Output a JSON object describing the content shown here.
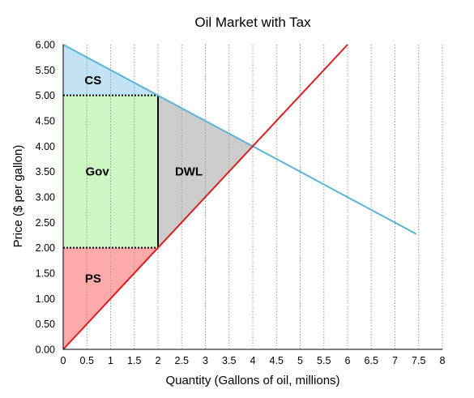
{
  "chart_data": {
    "type": "line",
    "title": "Oil Market with Tax",
    "xlabel": "Quantity (Gallons of oil, millions)",
    "ylabel": "Price ($ per gallon)",
    "xlim": [
      0,
      8
    ],
    "ylim": [
      0,
      6
    ],
    "x_ticks": [
      "0",
      "0.5",
      "1",
      "1.5",
      "2",
      "2.5",
      "3",
      "3.5",
      "4",
      "4.5",
      "5",
      "5.5",
      "6",
      "6.5",
      "7",
      "7.5",
      "8"
    ],
    "y_ticks": [
      "0.00",
      "0.50",
      "1.00",
      "1.50",
      "2.00",
      "2.50",
      "3.00",
      "3.50",
      "4.00",
      "4.50",
      "5.00",
      "5.50",
      "6.00"
    ],
    "grid": {
      "x": "dotted",
      "y": "none"
    },
    "series": [
      {
        "role": "demand",
        "color": "#5ab4d8",
        "points": [
          [
            0,
            6
          ],
          [
            7.45,
            2.27
          ]
        ]
      },
      {
        "role": "supply",
        "color": "#dd1f1f",
        "points": [
          [
            0,
            0
          ],
          [
            6,
            6
          ]
        ]
      }
    ],
    "regions": [
      {
        "label": "CS",
        "color": "#c2e3f4",
        "polygon": [
          [
            0,
            6
          ],
          [
            2,
            5
          ],
          [
            0,
            5
          ]
        ],
        "label_at": [
          0.63,
          5.3
        ]
      },
      {
        "label": "Gov",
        "color": "#ccf7c2",
        "polygon": [
          [
            0,
            5
          ],
          [
            2,
            5
          ],
          [
            2,
            2
          ],
          [
            0,
            2
          ]
        ],
        "label_at": [
          0.72,
          3.5
        ]
      },
      {
        "label": "DWL",
        "color": "#cccccc",
        "polygon": [
          [
            2,
            5
          ],
          [
            4,
            4
          ],
          [
            2,
            2
          ]
        ],
        "label_at": [
          2.65,
          3.5
        ]
      },
      {
        "label": "PS",
        "color": "#ffaaaa",
        "polygon": [
          [
            0,
            2
          ],
          [
            2,
            2
          ],
          [
            0,
            0
          ]
        ],
        "label_at": [
          0.63,
          1.4
        ]
      }
    ],
    "tax_wedge": {
      "quantity": 2,
      "consumer_price": 5,
      "producer_price": 2
    }
  }
}
